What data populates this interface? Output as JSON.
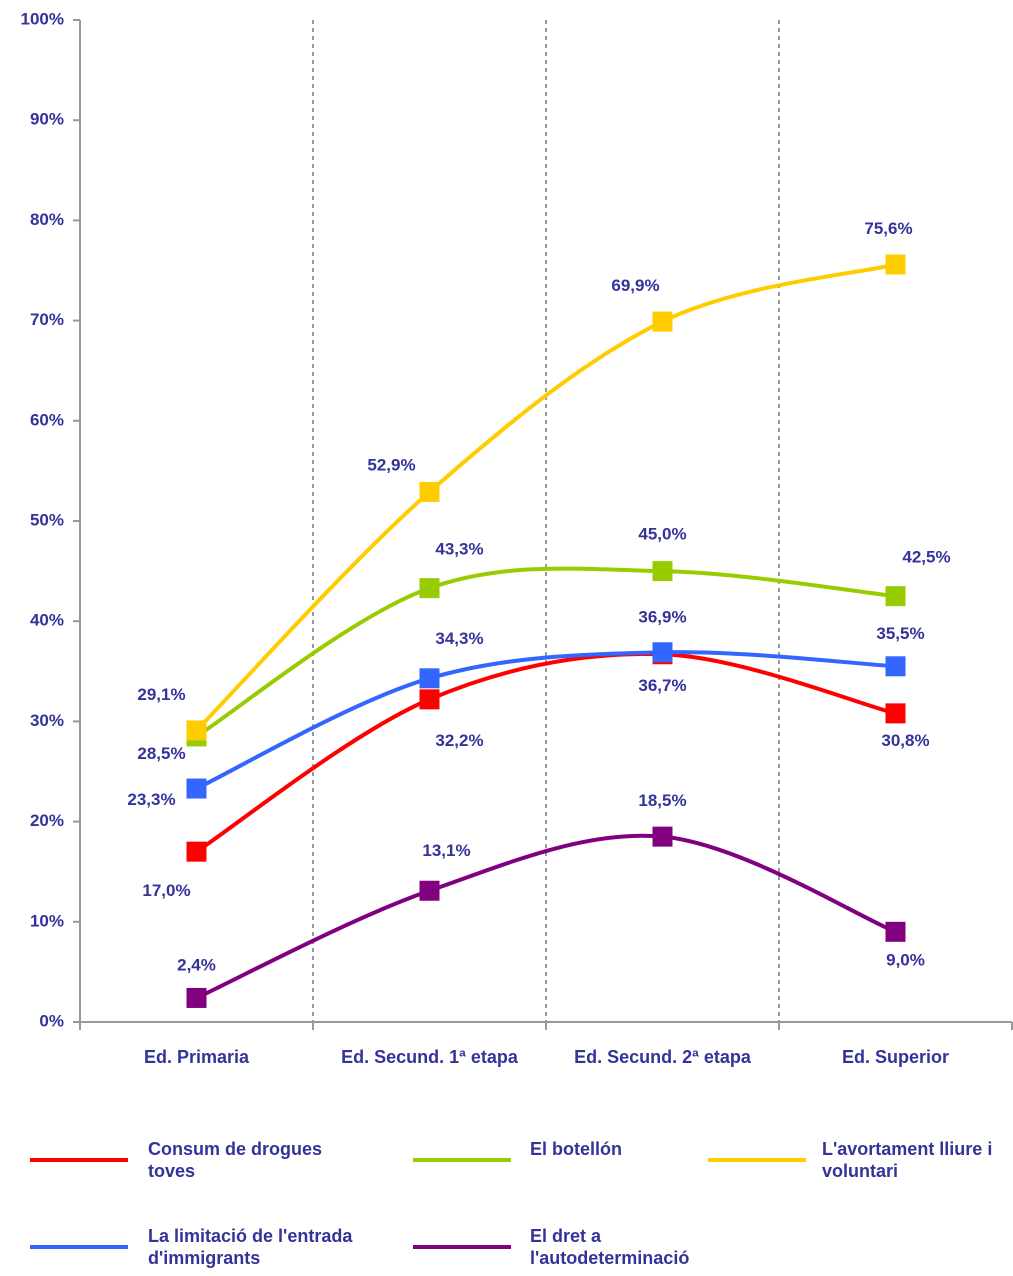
{
  "chart_data": {
    "type": "line",
    "categories": [
      "Ed. Primaria",
      "Ed. Secund. 1ª etapa",
      "Ed. Secund. 2ª etapa",
      "Ed. Superior"
    ],
    "ylim": [
      0,
      100
    ],
    "yticks": [
      {
        "value": 0,
        "label": "0%"
      },
      {
        "value": 10,
        "label": "10%"
      },
      {
        "value": 20,
        "label": "20%"
      },
      {
        "value": 30,
        "label": "30%"
      },
      {
        "value": 40,
        "label": "40%"
      },
      {
        "value": 50,
        "label": "50%"
      },
      {
        "value": 60,
        "label": "60%"
      },
      {
        "value": 70,
        "label": "70%"
      },
      {
        "value": 80,
        "label": "80%"
      },
      {
        "value": 90,
        "label": "90%"
      },
      {
        "value": 100,
        "label": "100%"
      }
    ],
    "series": [
      {
        "name": "Consum de drogues toves",
        "color": "#ff0000",
        "values": [
          17.0,
          32.2,
          36.7,
          30.8
        ],
        "value_labels": [
          "17,0%",
          "32,2%",
          "36,7%",
          "30,8%"
        ]
      },
      {
        "name": "El botellón",
        "color": "#99cc00",
        "values": [
          28.5,
          43.3,
          45.0,
          42.5
        ],
        "value_labels": [
          "28,5%",
          "43,3%",
          "45,0%",
          "42,5%"
        ]
      },
      {
        "name": "L'avortament lliure i voluntari",
        "color": "#ffcc00",
        "values": [
          29.1,
          52.9,
          69.9,
          75.6
        ],
        "value_labels": [
          "29,1%",
          "52,9%",
          "69,9%",
          "75,6%"
        ]
      },
      {
        "name": "La limitació de l'entrada d'immigrants",
        "color": "#3366ff",
        "values": [
          23.3,
          34.3,
          36.9,
          35.5
        ],
        "value_labels": [
          "23,3%",
          "34,3%",
          "36,9%",
          "35,5%"
        ]
      },
      {
        "name": "El dret a l'autodeterminació",
        "color": "#800080",
        "values": [
          2.4,
          13.1,
          18.5,
          9.0
        ],
        "value_labels": [
          "2,4%",
          "13,1%",
          "18,5%",
          "9,0%"
        ]
      }
    ]
  }
}
